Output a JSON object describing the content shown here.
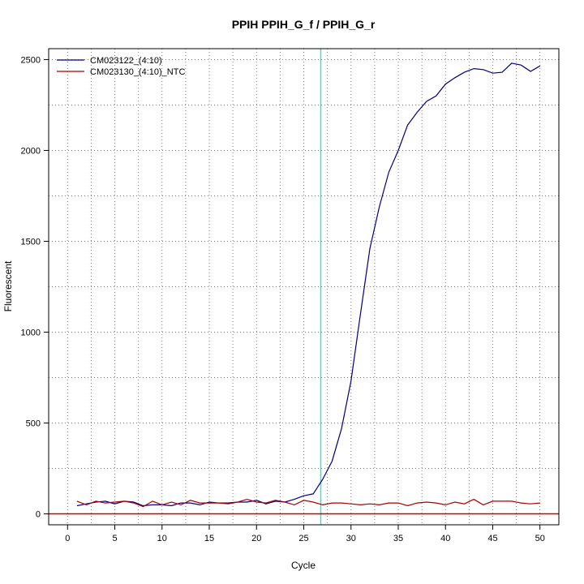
{
  "chart_data": {
    "type": "line",
    "title": "PPIH  PPIH_G_f / PPIH_G_r",
    "xlabel": "Cycle",
    "ylabel": "Fluorescent",
    "xlim": [
      -2,
      52
    ],
    "ylim": [
      -60,
      2560
    ],
    "xticks": [
      0,
      5,
      10,
      15,
      20,
      25,
      30,
      35,
      40,
      45,
      50
    ],
    "yticks": [
      0,
      500,
      1000,
      1500,
      2000,
      2500
    ],
    "grid_x": [
      2.5,
      7.5,
      12.5,
      17.5,
      22.5,
      27.5,
      32.5,
      37.5,
      42.5,
      47.5
    ],
    "grid_y": [
      250,
      750,
      1250,
      1750,
      2250
    ],
    "grid": true,
    "legend_position": "top-left",
    "threshold_cycle": 26.8,
    "baseline": 0,
    "colors": {
      "threshold": "#40e0d0",
      "baseline": "#cc0000",
      "grid": "#808080"
    },
    "x": [
      1,
      2,
      3,
      4,
      5,
      6,
      7,
      8,
      9,
      10,
      11,
      12,
      13,
      14,
      15,
      16,
      17,
      18,
      19,
      20,
      21,
      22,
      23,
      24,
      25,
      26,
      27,
      28,
      29,
      30,
      31,
      32,
      33,
      34,
      35,
      36,
      37,
      38,
      39,
      40,
      41,
      42,
      43,
      44,
      45,
      46,
      47,
      48,
      49,
      50
    ],
    "series": [
      {
        "name": "CM023122_(4:10)",
        "color": "#000080",
        "values": [
          45,
          55,
          65,
          70,
          55,
          70,
          65,
          45,
          50,
          50,
          45,
          60,
          60,
          50,
          65,
          60,
          60,
          65,
          65,
          75,
          55,
          70,
          65,
          80,
          100,
          110,
          190,
          290,
          470,
          730,
          1100,
          1460,
          1690,
          1880,
          2000,
          2140,
          2210,
          2270,
          2300,
          2365,
          2400,
          2430,
          2450,
          2445,
          2425,
          2430,
          2480,
          2470,
          2435,
          2465
        ]
      },
      {
        "name": "CM023130_(4:10)_NTC",
        "color": "#aa0000",
        "values": [
          70,
          50,
          70,
          60,
          65,
          70,
          60,
          40,
          70,
          50,
          65,
          50,
          75,
          60,
          60,
          60,
          55,
          65,
          80,
          65,
          60,
          75,
          65,
          50,
          75,
          65,
          50,
          60,
          60,
          55,
          50,
          55,
          50,
          60,
          60,
          45,
          60,
          65,
          60,
          50,
          65,
          55,
          80,
          50,
          70,
          70,
          70,
          60,
          55,
          60
        ]
      }
    ]
  }
}
